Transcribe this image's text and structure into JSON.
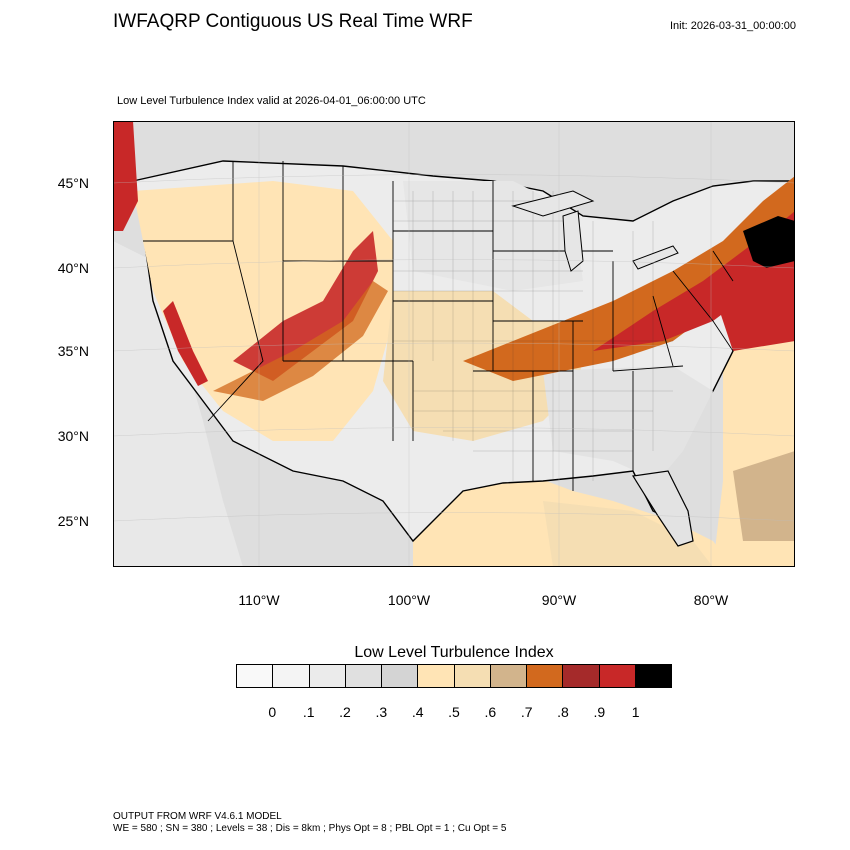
{
  "title": "IWFAQRP Contiguous US Real Time WRF",
  "init": "Init: 2026-03-31_00:00:00",
  "subtitle": "Low Level Turbulence Index valid at 2026-04-01_06:00:00 UTC",
  "map": {
    "projection": "lambert-conformal",
    "region": "Contiguous US",
    "lat_labels": [
      "45°N",
      "40°N",
      "35°N",
      "30°N",
      "25°N"
    ],
    "lon_labels": [
      "110°W",
      "100°W",
      "90°W",
      "80°W"
    ],
    "background_color": "#dcdcdc",
    "boundary_color": "#000000"
  },
  "legend": {
    "title": "Low Level Turbulence Index",
    "colors": [
      "#f9f9f9",
      "#f4f4f4",
      "#ebebeb",
      "#e0e0e0",
      "#d4d4d4",
      "#ffe4b5",
      "#f5deb3",
      "#d2b48c",
      "#d2691e",
      "#a52a2a",
      "#c82828",
      "#000000"
    ],
    "labels": [
      "0",
      ".1",
      ".2",
      ".3",
      ".4",
      ".5",
      ".6",
      ".7",
      ".8",
      ".9",
      "1"
    ]
  },
  "footer": {
    "line1": "OUTPUT FROM WRF V4.6.1 MODEL",
    "line2": "WE = 580 ; SN = 380 ; Levels = 38 ; Dis = 8km ; Phys Opt = 8 ; PBL Opt = 1 ; Cu Opt = 5"
  }
}
